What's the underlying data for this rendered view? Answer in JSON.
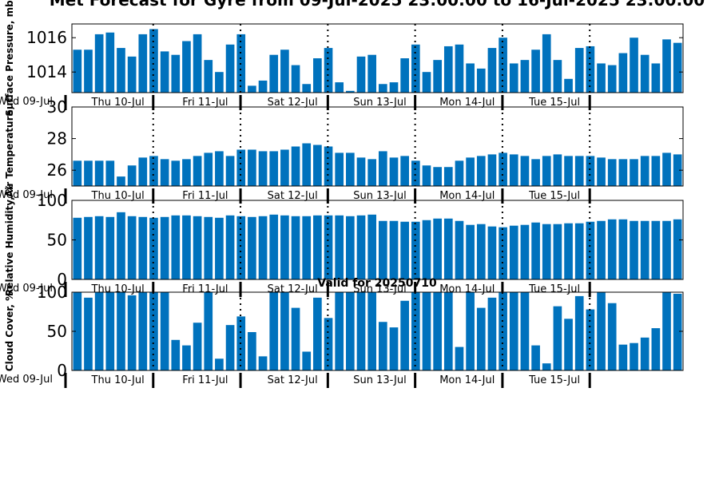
{
  "chart_data": {
    "type": "bar",
    "title": "Met Forecast for Gyre from 09-Jul-2025 23:00:00 to 16-Jul-2025 23:00:00",
    "subtitle": "Valid for 20250710",
    "bar_color": "#0072BD",
    "grid": false,
    "days": [
      "Wed 09-Jul",
      "Thu 10-Jul",
      "Fri 11-Jul",
      "Sat 12-Jul",
      "Sun 13-Jul",
      "Mon 14-Jul",
      "Tue 15-Jul"
    ],
    "panels": [
      {
        "ylabel": "Surface Pressure, mb",
        "ylim": [
          1012.8,
          1016.8
        ],
        "yticks": [
          1014,
          1016
        ],
        "values": [
          1015.3,
          1015.3,
          1016.2,
          1016.3,
          1015.4,
          1014.9,
          1016.2,
          1016.5,
          1015.2,
          1015.0,
          1015.8,
          1016.2,
          1014.7,
          1014.0,
          1015.6,
          1016.2,
          1013.2,
          1013.5,
          1015.0,
          1015.3,
          1014.4,
          1013.3,
          1014.8,
          1015.4,
          1013.4,
          1012.9,
          1014.9,
          1015.0,
          1013.3,
          1013.4,
          1014.8,
          1015.6,
          1014.0,
          1014.7,
          1015.5,
          1015.6,
          1014.5,
          1014.2,
          1015.4,
          1016.0,
          1014.5,
          1014.7,
          1015.3,
          1016.2,
          1014.7,
          1013.6,
          1015.4,
          1015.5,
          1014.5,
          1014.4,
          1015.1,
          1016.0,
          1015.0,
          1014.5,
          1015.9,
          1015.7
        ]
      },
      {
        "ylabel": "Air Temperature, C",
        "ylim": [
          25,
          30
        ],
        "yticks": [
          26,
          28,
          30
        ],
        "values": [
          26.6,
          26.6,
          26.6,
          26.6,
          25.6,
          26.3,
          26.8,
          26.9,
          26.7,
          26.6,
          26.7,
          26.9,
          27.1,
          27.2,
          26.9,
          27.3,
          27.3,
          27.2,
          27.2,
          27.3,
          27.5,
          27.7,
          27.6,
          27.5,
          27.1,
          27.1,
          26.8,
          26.7,
          27.2,
          26.8,
          26.9,
          26.6,
          26.3,
          26.2,
          26.2,
          26.6,
          26.8,
          26.9,
          27.0,
          27.1,
          27.0,
          26.9,
          26.7,
          26.9,
          27.0,
          26.9,
          26.9,
          26.9,
          26.8,
          26.7,
          26.7,
          26.7,
          26.9,
          26.9,
          27.1,
          27.0
        ]
      },
      {
        "ylabel": "Relative Humidity, %",
        "ylim": [
          0,
          100
        ],
        "yticks": [
          0,
          50,
          100
        ],
        "values": [
          78,
          79,
          80,
          79,
          85,
          80,
          79,
          78,
          79,
          81,
          81,
          80,
          79,
          78,
          81,
          80,
          79,
          80,
          82,
          81,
          80,
          80,
          81,
          81,
          81,
          80,
          81,
          82,
          74,
          74,
          73,
          73,
          75,
          77,
          77,
          74,
          69,
          70,
          67,
          66,
          68,
          69,
          72,
          70,
          70,
          71,
          71,
          73,
          74,
          76,
          76,
          74,
          74,
          74,
          74,
          76
        ]
      },
      {
        "ylabel": "Cloud Cover, %",
        "ylim": [
          0,
          100
        ],
        "yticks": [
          0,
          50,
          100
        ],
        "values": [
          100,
          93,
          100,
          100,
          100,
          96,
          100,
          100,
          100,
          39,
          32,
          61,
          100,
          15,
          58,
          69,
          49,
          18,
          100,
          100,
          80,
          24,
          93,
          67,
          100,
          100,
          100,
          100,
          62,
          55,
          89,
          100,
          100,
          100,
          100,
          30,
          100,
          80,
          93,
          100,
          100,
          100,
          32,
          9,
          82,
          66,
          95,
          78,
          100,
          86,
          33,
          35,
          42,
          54,
          100,
          98
        ]
      }
    ]
  }
}
